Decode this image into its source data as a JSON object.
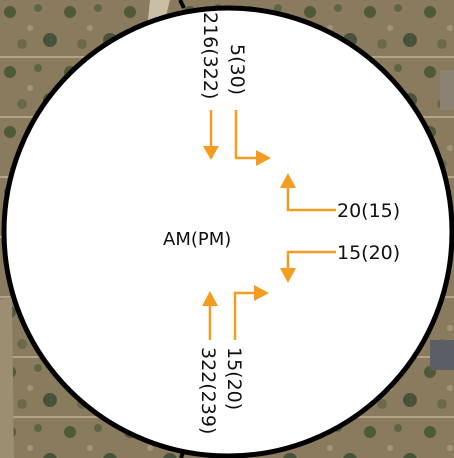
{
  "diagram": {
    "center_label": "AM(PM)",
    "accent_color": "#f39c1f",
    "movements": {
      "north_through": "216(322)",
      "north_right": "5(30)",
      "east_top": "20(15)",
      "east_bottom": "15(20)",
      "south_through": "322(239)",
      "south_right": "15(20)"
    }
  }
}
